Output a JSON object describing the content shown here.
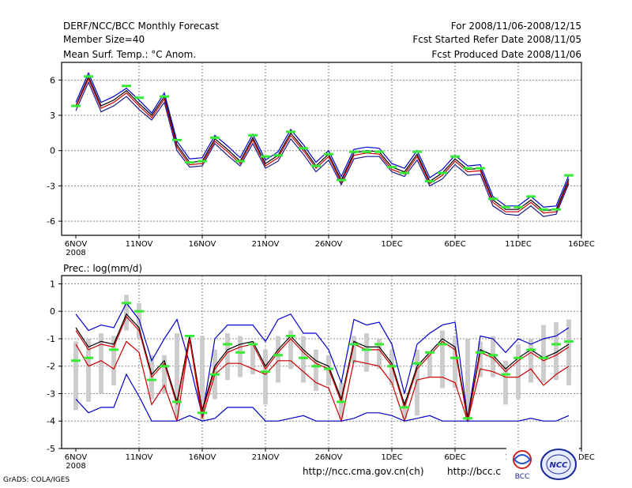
{
  "header": {
    "title": "DERF/NCC/BCC Monthly Forecast",
    "member_size": "Member Size=40",
    "variable": "Mean Surf. Temp.: °C Anom.",
    "period": "For 2008/11/06-2008/12/15",
    "started": "Fcst Started Refer Date 2008/11/05",
    "produced": "Fcst Produced Date 2008/11/06"
  },
  "footer": {
    "grads_credit": "GrADS: COLA/IGES",
    "url1": "http://ncc.cma.gov.cn(ch)",
    "url2": "http://bcc.c"
  },
  "logos": {
    "bcc_text": "BCC",
    "ncc_text": "NCC"
  },
  "colors": {
    "ensemble_line": "#000000",
    "member_line": "#cc0000",
    "bound_line": "#0000cc",
    "spread_line": "#1a1a8c",
    "obs_marker": "#33ee33",
    "box": "#cccccc",
    "frame": "#000000"
  },
  "chart_data": [
    {
      "type": "line",
      "title": "Mean Surf. Temp.: °C Anom.",
      "x_labels": [
        "6NOV",
        "11NOV",
        "16NOV",
        "21NOV",
        "26NOV",
        "1DEC",
        "6DEC",
        "11DEC",
        "16DEC"
      ],
      "x_year": "2008",
      "x_label_days": [
        0,
        5,
        10,
        15,
        20,
        25,
        30,
        35,
        40
      ],
      "ylim": [
        -7.2,
        7.5
      ],
      "yticks": [
        -6,
        -3,
        0,
        3,
        6
      ],
      "ytick_labels": [
        "-6",
        "-3",
        "0",
        "3",
        "6"
      ],
      "days": [
        0,
        1,
        2,
        3,
        4,
        5,
        6,
        7,
        8,
        9,
        10,
        11,
        12,
        13,
        14,
        15,
        16,
        17,
        18,
        19,
        20,
        21,
        22,
        23,
        24,
        25,
        26,
        27,
        28,
        29,
        30,
        31,
        32,
        33,
        34,
        35,
        36,
        37,
        38,
        39
      ],
      "series": [
        {
          "name": "upper blue",
          "color": "#0000cc",
          "values": [
            4.1,
            6.6,
            4.1,
            4.6,
            5.3,
            4.3,
            3.2,
            4.9,
            0.8,
            -0.7,
            -0.6,
            1.3,
            0.4,
            -0.6,
            1.4,
            -0.8,
            -0.1,
            1.8,
            0.5,
            -1.0,
            0.0,
            -2.2,
            0.1,
            0.3,
            0.2,
            -1.1,
            -1.5,
            0.0,
            -2.3,
            -1.6,
            -0.4,
            -1.3,
            -1.2,
            -3.9,
            -4.7,
            -4.7,
            -3.9,
            -4.8,
            -4.7,
            -2.1
          ]
        },
        {
          "name": "ensemble mean",
          "color": "#000000",
          "values": [
            3.8,
            6.3,
            3.8,
            4.3,
            5.1,
            4.0,
            3.0,
            4.6,
            0.5,
            -1.0,
            -0.9,
            1.0,
            0.1,
            -0.9,
            1.1,
            -1.1,
            -0.4,
            1.5,
            0.2,
            -1.3,
            -0.3,
            -2.5,
            -0.2,
            0.0,
            -0.1,
            -1.4,
            -1.8,
            -0.3,
            -2.6,
            -1.9,
            -0.7,
            -1.6,
            -1.5,
            -4.2,
            -5.0,
            -5.0,
            -4.2,
            -5.1,
            -5.0,
            -2.4
          ]
        },
        {
          "name": "member red",
          "color": "#cc0000",
          "values": [
            3.7,
            6.1,
            3.6,
            4.1,
            4.9,
            3.8,
            2.8,
            4.4,
            0.3,
            -1.2,
            -1.1,
            0.8,
            -0.1,
            -1.1,
            0.9,
            -1.3,
            -0.6,
            1.3,
            0.0,
            -1.5,
            -0.5,
            -2.7,
            -0.4,
            -0.2,
            -0.3,
            -1.6,
            -2.0,
            -0.5,
            -2.8,
            -2.1,
            -0.9,
            -1.8,
            -1.7,
            -4.4,
            -5.2,
            -5.2,
            -4.4,
            -5.3,
            -5.2,
            -2.6
          ]
        },
        {
          "name": "lower",
          "color": "#1a1a8c",
          "values": [
            3.4,
            5.8,
            3.3,
            3.8,
            4.6,
            3.5,
            2.6,
            4.1,
            0.0,
            -1.4,
            -1.3,
            0.6,
            -0.4,
            -1.3,
            0.6,
            -1.5,
            -0.9,
            1.0,
            -0.3,
            -1.8,
            -0.8,
            -2.9,
            -0.7,
            -0.5,
            -0.5,
            -1.8,
            -2.2,
            -0.8,
            -3.0,
            -2.4,
            -1.2,
            -2.1,
            -2.0,
            -4.7,
            -5.4,
            -5.5,
            -4.7,
            -5.6,
            -5.4,
            -2.8
          ]
        }
      ],
      "markers": {
        "color": "#33ee33",
        "values": [
          3.8,
          6.3,
          null,
          null,
          5.5,
          4.5,
          null,
          4.6,
          0.9,
          -1.0,
          -0.9,
          1.1,
          null,
          -0.9,
          1.3,
          -0.5,
          -0.4,
          1.6,
          0.2,
          -1.3,
          -0.3,
          -2.5,
          -0.1,
          -0.1,
          -0.1,
          -1.4,
          -1.9,
          -0.1,
          -2.6,
          -1.9,
          -0.5,
          -1.5,
          -1.5,
          -4.1,
          -4.8,
          -4.8,
          -3.9,
          -5.0,
          -5.0,
          -2.1
        ]
      }
    },
    {
      "type": "line",
      "title": "Prec.: log(mm/d)",
      "x_labels": [
        "6NOV",
        "11NOV",
        "16NOV",
        "21NOV",
        "26NOV",
        "1DEC",
        "6DEC",
        "11DEC",
        "16DEC"
      ],
      "x_year": "2008",
      "x_label_days": [
        0,
        5,
        10,
        15,
        20,
        25,
        30,
        35,
        40
      ],
      "ylim": [
        -5,
        1.3
      ],
      "yticks": [
        -5,
        -4,
        -3,
        -2,
        -1,
        0,
        1
      ],
      "ytick_labels": [
        "-5",
        "-4",
        "-3",
        "-2",
        "-1",
        "0",
        "1"
      ],
      "days": [
        0,
        1,
        2,
        3,
        4,
        5,
        6,
        7,
        8,
        9,
        10,
        11,
        12,
        13,
        14,
        15,
        16,
        17,
        18,
        19,
        20,
        21,
        22,
        23,
        24,
        25,
        26,
        27,
        28,
        29,
        30,
        31,
        32,
        33,
        34,
        35,
        36,
        37,
        38,
        39
      ],
      "boxes": {
        "color": "#cccccc",
        "low": [
          -3.6,
          -3.3,
          -3.0,
          -2.7,
          -0.7,
          -1.0,
          -3.2,
          -3.0,
          -3.9,
          -1.3,
          -4.0,
          -3.2,
          -2.5,
          -2.4,
          -2.3,
          -3.4,
          -2.6,
          -2.1,
          -2.6,
          -2.9,
          -2.7,
          -3.9,
          -1.9,
          -2.2,
          -2.1,
          -2.7,
          -3.9,
          -3.8,
          -2.4,
          -2.8,
          -2.8,
          -4.0,
          -2.4,
          -2.4,
          -3.4,
          -3.2,
          -2.6,
          -2.6,
          -2.5,
          -2.7
        ],
        "high": [
          -1.1,
          -1.0,
          -0.8,
          -0.9,
          0.6,
          0.3,
          -1.6,
          -1.6,
          -0.8,
          -1.1,
          -0.9,
          -1.4,
          -0.8,
          -0.9,
          -1.1,
          -1.4,
          -0.9,
          -0.7,
          -0.9,
          -1.4,
          -1.6,
          -2.6,
          -0.9,
          -0.8,
          -1.0,
          -1.4,
          -3.2,
          -1.4,
          -1.6,
          -0.7,
          -0.9,
          -1.0,
          -1.1,
          -0.9,
          -1.8,
          -1.2,
          -1.0,
          -0.5,
          -0.4,
          -0.3
        ]
      },
      "series": [
        {
          "name": "upper blue",
          "color": "#0000cc",
          "values": [
            -0.1,
            -0.7,
            -0.5,
            -0.6,
            0.3,
            -0.3,
            -1.8,
            -1.0,
            -0.3,
            -1.9,
            -3.8,
            -1.0,
            -0.5,
            -0.5,
            -0.5,
            -1.1,
            -0.3,
            -0.1,
            -0.8,
            -0.8,
            -1.4,
            -2.6,
            -0.3,
            -0.5,
            -0.4,
            -1.2,
            -3.0,
            -1.2,
            -0.8,
            -0.5,
            -0.4,
            -3.9,
            -0.9,
            -1.0,
            -1.5,
            -1.0,
            -1.2,
            -1.0,
            -0.9,
            -0.6
          ]
        },
        {
          "name": "ensemble mean",
          "color": "#000000",
          "values": [
            -0.6,
            -1.3,
            -1.1,
            -1.2,
            -0.1,
            -0.6,
            -2.3,
            -1.8,
            -3.3,
            -0.9,
            -3.6,
            -2.0,
            -1.4,
            -1.2,
            -1.1,
            -2.0,
            -1.4,
            -0.9,
            -1.4,
            -1.8,
            -2.0,
            -3.2,
            -1.1,
            -1.3,
            -1.3,
            -1.9,
            -3.4,
            -2.0,
            -1.5,
            -1.0,
            -1.3,
            -3.9,
            -1.4,
            -1.6,
            -2.1,
            -1.7,
            -1.4,
            -1.7,
            -1.5,
            -1.2
          ]
        },
        {
          "name": "member red",
          "color": "#cc0000",
          "values": [
            -0.7,
            -1.4,
            -1.2,
            -1.3,
            -0.2,
            -0.7,
            -2.4,
            -1.9,
            -3.4,
            -1.0,
            -3.7,
            -2.1,
            -1.5,
            -1.3,
            -1.2,
            -2.1,
            -1.5,
            -1.0,
            -1.5,
            -1.9,
            -2.1,
            -3.3,
            -1.2,
            -1.4,
            -1.4,
            -2.0,
            -3.5,
            -2.1,
            -1.6,
            -1.1,
            -1.4,
            -4.0,
            -1.5,
            -1.7,
            -2.2,
            -1.8,
            -1.5,
            -1.8,
            -1.6,
            -1.3
          ]
        },
        {
          "name": "member red lower",
          "color": "#cc0000",
          "values": [
            -1.2,
            -2.0,
            -1.8,
            -2.1,
            -1.1,
            -1.5,
            -3.4,
            -2.7,
            -4.0,
            -1.0,
            -3.9,
            -2.3,
            -1.9,
            -1.9,
            -2.1,
            -2.3,
            -1.8,
            -1.8,
            -2.2,
            -2.6,
            -2.8,
            -4.0,
            -1.8,
            -1.9,
            -2.0,
            -2.6,
            -4.0,
            -2.5,
            -2.4,
            -2.4,
            -2.6,
            -4.0,
            -2.1,
            -2.2,
            -2.4,
            -2.4,
            -2.1,
            -2.7,
            -2.3,
            -2.0
          ]
        },
        {
          "name": "lower blue",
          "color": "#0000cc",
          "values": [
            -3.2,
            -3.7,
            -3.5,
            -3.5,
            -2.3,
            -3.1,
            -4.0,
            -4.0,
            -4.0,
            -3.8,
            -4.0,
            -3.9,
            -3.5,
            -3.5,
            -3.5,
            -4.0,
            -4.0,
            -3.9,
            -3.8,
            -4.0,
            -4.0,
            -4.0,
            -3.9,
            -3.7,
            -3.7,
            -3.8,
            -4.0,
            -3.9,
            -3.8,
            -4.0,
            -4.0,
            -4.0,
            -4.0,
            -4.0,
            -4.0,
            -4.0,
            -3.9,
            -4.0,
            -4.0,
            -3.8
          ]
        }
      ],
      "markers": {
        "color": "#33ee33",
        "values": [
          -1.8,
          -1.7,
          null,
          -1.4,
          0.3,
          0.0,
          -2.5,
          -2.0,
          -3.3,
          -0.9,
          -3.7,
          -2.3,
          -1.2,
          -1.5,
          -1.2,
          -2.2,
          -1.6,
          -0.9,
          -1.7,
          -2.0,
          -2.1,
          -3.3,
          -1.2,
          -1.4,
          -1.2,
          -2.0,
          -3.5,
          -1.9,
          -1.5,
          -1.2,
          -1.7,
          -3.9,
          -1.5,
          -1.6,
          -2.3,
          -1.7,
          -1.4,
          -1.7,
          -1.2,
          -1.1
        ]
      }
    }
  ]
}
